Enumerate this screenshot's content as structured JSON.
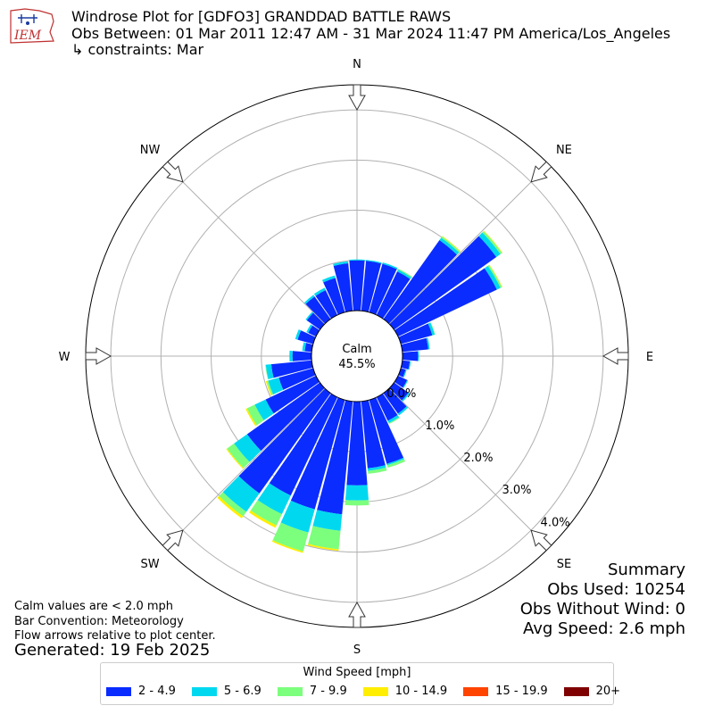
{
  "header": {
    "logo_text": "IEM",
    "title": "Windrose Plot for [GDFO3] GRANDDAD BATTLE RAWS",
    "subtitle": "Obs Between: 01 Mar 2011 12:47 AM - 31 Mar 2024 11:47 PM America/Los_Angeles",
    "constraints": "↳ constraints: Mar"
  },
  "chart_data": {
    "type": "windrose",
    "directions": [
      "N",
      "NNE",
      "NE",
      "ENE",
      "E",
      "ESE",
      "SE",
      "SSE",
      "S",
      "SSW",
      "SW",
      "WSW",
      "W",
      "WNW",
      "NW",
      "NNW"
    ],
    "compass_labels": [
      "N",
      "NE",
      "E",
      "SE",
      "S",
      "SW",
      "W",
      "NW"
    ],
    "calm_label": "Calm",
    "calm_percent": "45.5%",
    "radial_tick_labels": [
      "0.0%",
      "1.0%",
      "2.0%",
      "3.0%",
      "4.0%"
    ],
    "rmax": 4.5,
    "speed_bins": [
      "2 - 4.9",
      "5 - 6.9",
      "7 - 9.9",
      "10 - 14.9",
      "15 - 19.9",
      "20+"
    ],
    "bin_colors": [
      "#0a2cff",
      "#00d8f0",
      "#7cff7c",
      "#ffee00",
      "#ff4400",
      "#7f0000"
    ],
    "bar_convention": "meteorology",
    "series_by_direction_deg": [
      {
        "dir": 0,
        "values": [
          1.0,
          0.02,
          0,
          0,
          0,
          0
        ]
      },
      {
        "dir": 10,
        "values": [
          1.0,
          0.02,
          0,
          0,
          0,
          0
        ]
      },
      {
        "dir": 20,
        "values": [
          1.0,
          0.03,
          0,
          0,
          0,
          0
        ]
      },
      {
        "dir": 30,
        "values": [
          0.96,
          0.04,
          0.02,
          0,
          0,
          0
        ]
      },
      {
        "dir": 40,
        "values": [
          1.93,
          0.06,
          0.03,
          0.01,
          0,
          0
        ]
      },
      {
        "dir": 50,
        "values": [
          2.5,
          0.1,
          0.04,
          0.01,
          0,
          0
        ]
      },
      {
        "dir": 60,
        "values": [
          2.18,
          0.08,
          0.03,
          0.01,
          0,
          0
        ]
      },
      {
        "dir": 70,
        "values": [
          0.65,
          0.05,
          0.01,
          0,
          0,
          0
        ]
      },
      {
        "dir": 80,
        "values": [
          0.52,
          0.03,
          0,
          0,
          0,
          0
        ]
      },
      {
        "dir": 90,
        "values": [
          0.31,
          0.02,
          0,
          0,
          0,
          0
        ]
      },
      {
        "dir": 100,
        "values": [
          0.15,
          0.02,
          0,
          0,
          0,
          0
        ]
      },
      {
        "dir": 110,
        "values": [
          0.1,
          0.02,
          0,
          0,
          0,
          0
        ]
      },
      {
        "dir": 120,
        "values": [
          0.2,
          0.02,
          0,
          0,
          0,
          0
        ]
      },
      {
        "dir": 130,
        "values": [
          0.35,
          0.03,
          0,
          0,
          0,
          0
        ]
      },
      {
        "dir": 140,
        "values": [
          0.5,
          0.04,
          0,
          0,
          0,
          0
        ]
      },
      {
        "dir": 150,
        "values": [
          0.52,
          0.05,
          0.02,
          0,
          0,
          0
        ]
      },
      {
        "dir": 160,
        "values": [
          1.32,
          0.03,
          0.05,
          0,
          0,
          0
        ]
      },
      {
        "dir": 170,
        "values": [
          1.34,
          0.05,
          0.06,
          0,
          0,
          0
        ]
      },
      {
        "dir": 180,
        "values": [
          1.67,
          0.3,
          0.1,
          0,
          0,
          0
        ]
      },
      {
        "dir": 190,
        "values": [
          2.26,
          0.33,
          0.37,
          0.03,
          0,
          0
        ]
      },
      {
        "dir": 200,
        "values": [
          2.26,
          0.48,
          0.39,
          0.03,
          0,
          0
        ]
      },
      {
        "dir": 210,
        "values": [
          2.17,
          0.41,
          0.25,
          0.05,
          0,
          0
        ]
      },
      {
        "dir": 220,
        "values": [
          2.45,
          0.45,
          0.11,
          0.05,
          0,
          0
        ]
      },
      {
        "dir": 230,
        "values": [
          1.78,
          0.32,
          0.17,
          0.02,
          0,
          0
        ]
      },
      {
        "dir": 240,
        "values": [
          1.11,
          0.24,
          0.17,
          0.03,
          0,
          0
        ]
      },
      {
        "dir": 250,
        "values": [
          0.71,
          0.22,
          0.03,
          0.02,
          0,
          0
        ]
      },
      {
        "dir": 260,
        "values": [
          0.81,
          0.11,
          0.01,
          0,
          0,
          0
        ]
      },
      {
        "dir": 270,
        "values": [
          0.38,
          0.06,
          0,
          0,
          0,
          0
        ]
      },
      {
        "dir": 280,
        "values": [
          0.14,
          0.05,
          0,
          0,
          0,
          0
        ]
      },
      {
        "dir": 290,
        "values": [
          0.32,
          0.05,
          0,
          0,
          0,
          0
        ]
      },
      {
        "dir": 300,
        "values": [
          0.17,
          0.04,
          0,
          0,
          0,
          0
        ]
      },
      {
        "dir": 310,
        "values": [
          0.32,
          0.03,
          0,
          0,
          0,
          0
        ]
      },
      {
        "dir": 320,
        "values": [
          0.55,
          0.04,
          0,
          0,
          0,
          0
        ]
      },
      {
        "dir": 330,
        "values": [
          0.55,
          0.05,
          0,
          0,
          0,
          0
        ]
      },
      {
        "dir": 340,
        "values": [
          0.71,
          0.05,
          0,
          0,
          0,
          0
        ]
      },
      {
        "dir": 350,
        "values": [
          0.95,
          0.04,
          0,
          0,
          0,
          0
        ]
      }
    ]
  },
  "notes": {
    "calm_note": "Calm values are < 2.0 mph",
    "bar_convention": "Bar Convention: Meteorology",
    "flow_note": "Flow arrows relative to plot center.",
    "generated": "Generated: 19 Feb 2025"
  },
  "summary": {
    "heading": "Summary",
    "obs_used": "Obs Used: 10254",
    "obs_without_wind": "Obs Without Wind: 0",
    "avg_speed": "Avg Speed: 2.6 mph"
  },
  "legend": {
    "title": "Wind Speed [mph]",
    "items": [
      "2 - 4.9",
      "5 - 6.9",
      "7 - 9.9",
      "10 - 14.9",
      "15 - 19.9",
      "20+"
    ]
  }
}
